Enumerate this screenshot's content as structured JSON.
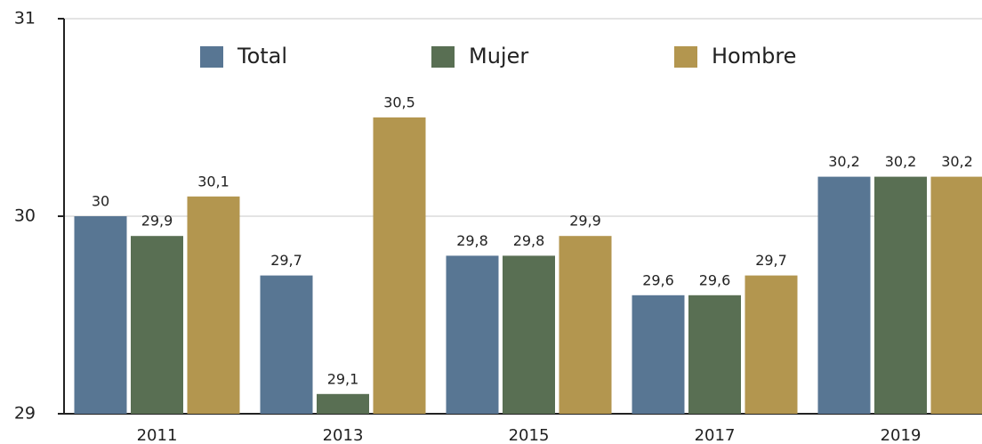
{
  "chart_data": {
    "type": "bar",
    "categories": [
      "2011",
      "2013",
      "2015",
      "2017",
      "2019"
    ],
    "series": [
      {
        "name": "Total",
        "color": "#587693",
        "values": [
          30,
          29.7,
          29.8,
          29.6,
          30.2
        ],
        "value_labels": [
          "30",
          "29,7",
          "29,8",
          "29,6",
          "30,2"
        ]
      },
      {
        "name": "Mujer",
        "color": "#596f53",
        "values": [
          29.9,
          29.1,
          29.8,
          29.6,
          30.2
        ],
        "value_labels": [
          "29,9",
          "29,1",
          "29,8",
          "29,6",
          "30,2"
        ]
      },
      {
        "name": "Hombre",
        "color": "#b3964f",
        "values": [
          30.1,
          30.5,
          29.9,
          29.7,
          30.2
        ],
        "value_labels": [
          "30,1",
          "30,5",
          "29,9",
          "29,7",
          "30,2"
        ]
      }
    ],
    "ylim": [
      29,
      31
    ],
    "yticks": [
      29,
      30,
      31
    ],
    "grid": true,
    "legend": "top"
  }
}
